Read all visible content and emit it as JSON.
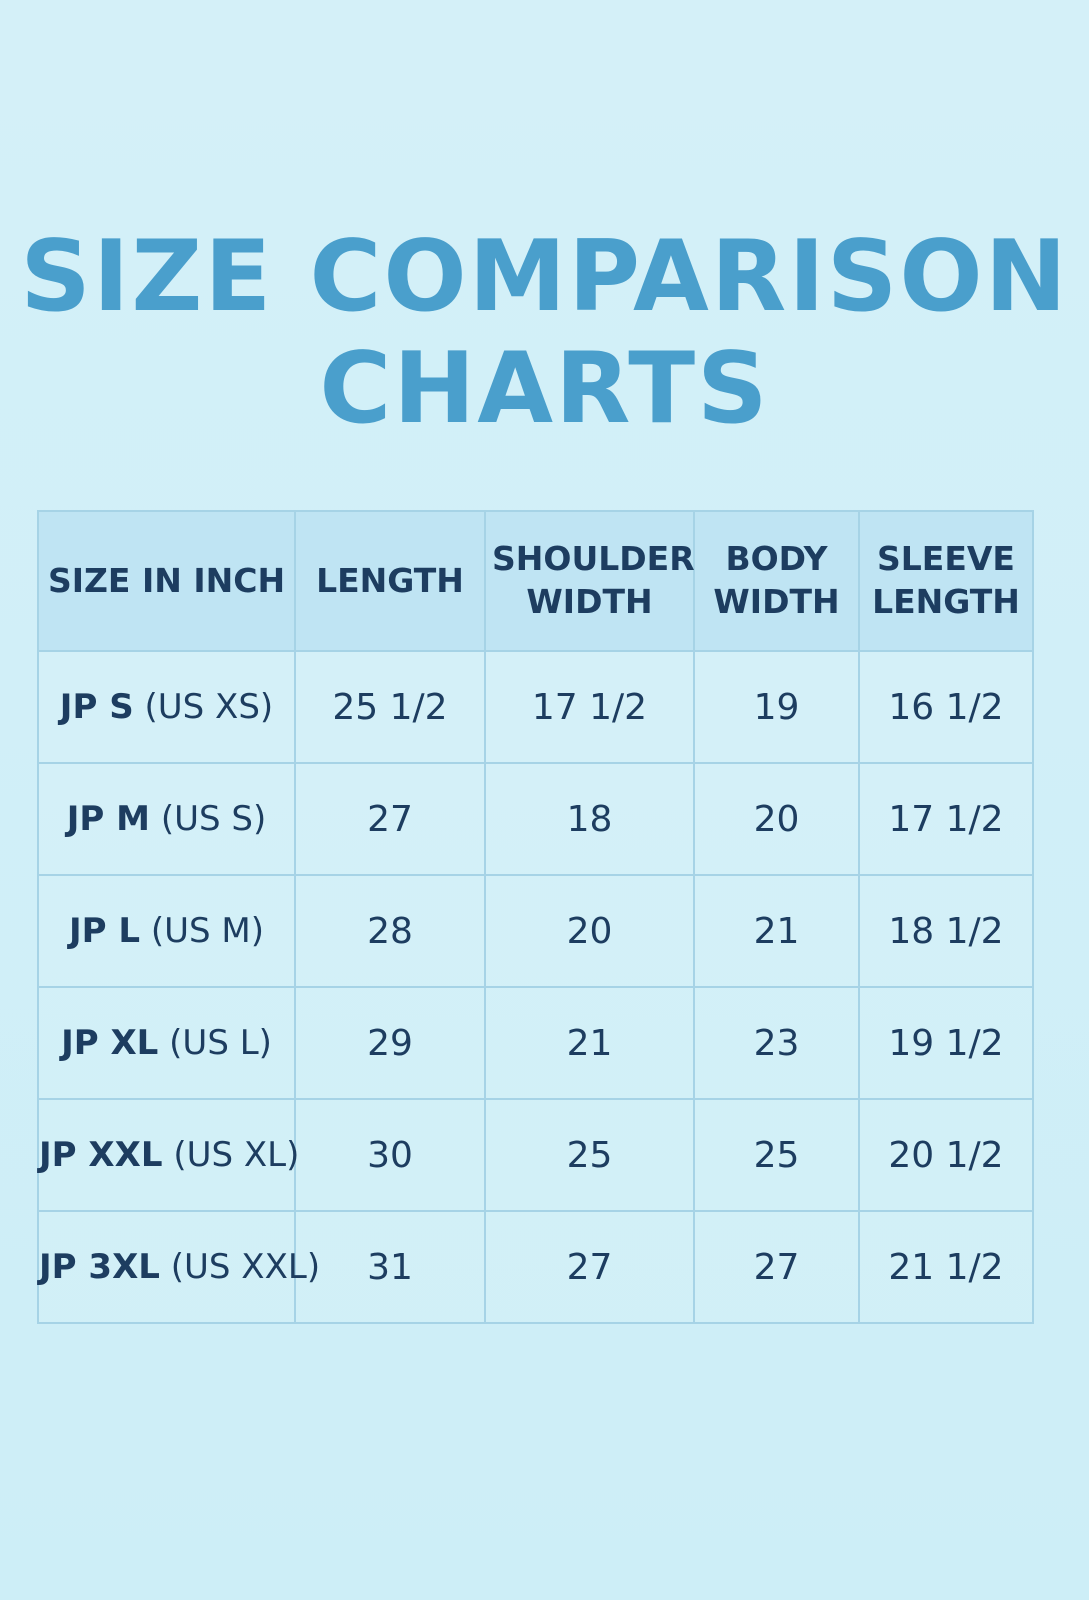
{
  "title": [
    "SIZE COMPARISON",
    "CHARTS"
  ],
  "table": {
    "headers": [
      "SIZE IN INCH",
      "LENGTH",
      "SHOULDER WIDTH",
      "BODY WIDTH",
      "SLEEVE LENGTH"
    ],
    "rows": [
      [
        {
          "jp": "JP S",
          "us": "(US XS)"
        },
        "25 1/2",
        "17 1/2",
        "19",
        "16 1/2"
      ],
      [
        {
          "jp": "JP M",
          "us": "(US S)"
        },
        "27",
        "18",
        "20",
        "17 1/2"
      ],
      [
        {
          "jp": "JP L",
          "us": "(US M)"
        },
        "28",
        "20",
        "21",
        "18 1/2"
      ],
      [
        {
          "jp": "JP XL",
          "us": "(US L)"
        },
        "29",
        "21",
        "23",
        "19 1/2"
      ],
      [
        {
          "jp": "JP XXL",
          "us": "(US XL)"
        },
        "30",
        "25",
        "25",
        "20 1/2"
      ],
      [
        {
          "jp": "JP 3XL",
          "us": "(US XXL)"
        },
        "31",
        "27",
        "27",
        "21 1/2"
      ]
    ]
  }
}
